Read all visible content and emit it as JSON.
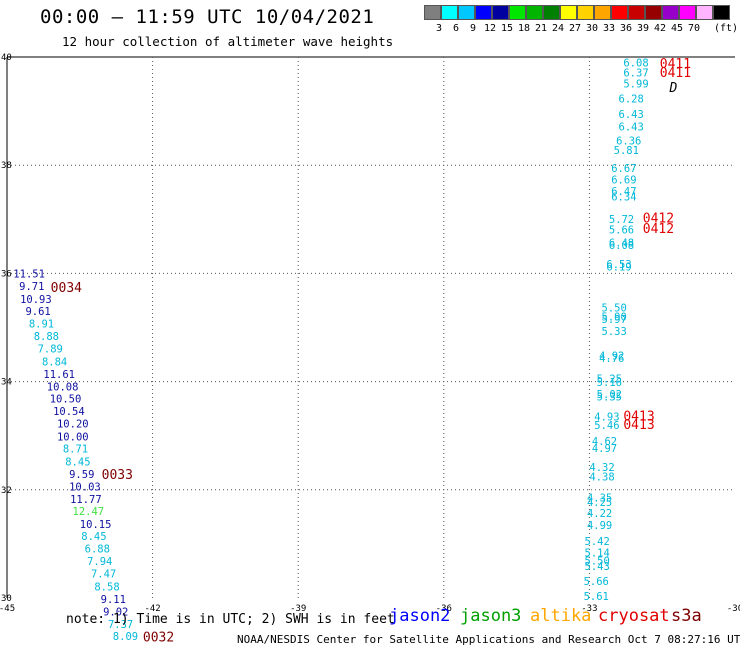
{
  "header": {
    "title": "00:00 — 11:59 UTC 10/04/2021",
    "subtitle": "12 hour collection of altimeter wave heights"
  },
  "legend": {
    "colors": [
      "#7f7f7f",
      "#00ffff",
      "#00c8ff",
      "#0000ff",
      "#0000a0",
      "#00e600",
      "#00b400",
      "#008000",
      "#ffff00",
      "#ffd200",
      "#ffa500",
      "#ff0000",
      "#c80000",
      "#960000",
      "#9600c8",
      "#ff00ff",
      "#ffb4ff",
      "#000000"
    ],
    "labels": [
      "3",
      "6",
      "9",
      "12",
      "15",
      "18",
      "21",
      "24",
      "27",
      "30",
      "33",
      "36",
      "39",
      "42",
      "45",
      "70"
    ],
    "unit": "(ft)"
  },
  "map": {
    "x_ticks": [
      "-45",
      "-42",
      "-39",
      "-36",
      "-33",
      "-30"
    ],
    "y_ticks": [
      "40",
      "38",
      "36",
      "34",
      "32",
      "30"
    ],
    "lon_range": [
      -45,
      -30
    ],
    "lat_range": [
      30,
      40
    ]
  },
  "points": [
    {
      "lon": -44.87,
      "lat": 35.92,
      "text": "11.51",
      "c": "#1010a0"
    },
    {
      "lon": -44.75,
      "lat": 35.69,
      "text": "9.71",
      "c": "#1010a0"
    },
    {
      "lon": -44.73,
      "lat": 35.45,
      "text": "10.93",
      "c": "#1010a0"
    },
    {
      "lon": -44.62,
      "lat": 35.23,
      "text": "9.61",
      "c": "#1010a0"
    },
    {
      "lon": -44.55,
      "lat": 35.0,
      "text": "8.91",
      "c": "#00b8d8"
    },
    {
      "lon": -44.45,
      "lat": 34.77,
      "text": "8.88",
      "c": "#00b8d8"
    },
    {
      "lon": -44.37,
      "lat": 34.54,
      "text": "7.89",
      "c": "#00b8d8"
    },
    {
      "lon": -44.28,
      "lat": 34.3,
      "text": "8.84",
      "c": "#00b8d8"
    },
    {
      "lon": -44.25,
      "lat": 34.07,
      "text": "11.61",
      "c": "#1010a0"
    },
    {
      "lon": -44.18,
      "lat": 33.84,
      "text": "10.08",
      "c": "#1010a0"
    },
    {
      "lon": -44.12,
      "lat": 33.61,
      "text": "10.50",
      "c": "#1010a0"
    },
    {
      "lon": -44.05,
      "lat": 33.38,
      "text": "10.54",
      "c": "#1010a0"
    },
    {
      "lon": -43.97,
      "lat": 33.15,
      "text": "10.20",
      "c": "#1010a0"
    },
    {
      "lon": -43.97,
      "lat": 32.91,
      "text": "10.00",
      "c": "#1010a0"
    },
    {
      "lon": -43.85,
      "lat": 32.69,
      "text": "8.71",
      "c": "#00b8d8"
    },
    {
      "lon": -43.8,
      "lat": 32.45,
      "text": "8.45",
      "c": "#00b8d8"
    },
    {
      "lon": -43.72,
      "lat": 32.22,
      "text": "9.59",
      "c": "#1010a0"
    },
    {
      "lon": -43.72,
      "lat": 31.99,
      "text": "10.03",
      "c": "#1010a0"
    },
    {
      "lon": -43.7,
      "lat": 31.76,
      "text": "11.77",
      "c": "#1010a0"
    },
    {
      "lon": -43.65,
      "lat": 31.53,
      "text": "12.47",
      "c": "#40e040"
    },
    {
      "lon": -43.5,
      "lat": 31.29,
      "text": "10.15",
      "c": "#1010a0"
    },
    {
      "lon": -43.47,
      "lat": 31.07,
      "text": "8.45",
      "c": "#00b8d8"
    },
    {
      "lon": -43.4,
      "lat": 30.84,
      "text": "6.88",
      "c": "#00b8d8"
    },
    {
      "lon": -43.35,
      "lat": 30.61,
      "text": "7.94",
      "c": "#00b8d8"
    },
    {
      "lon": -43.27,
      "lat": 30.38,
      "text": "7.47",
      "c": "#00b8d8"
    },
    {
      "lon": -43.2,
      "lat": 30.14,
      "text": "8.58",
      "c": "#00b8d8"
    },
    {
      "lon": -43.07,
      "lat": 29.91,
      "text": "9.11",
      "c": "#1010a0"
    },
    {
      "lon": -43.02,
      "lat": 29.68,
      "text": "9.02",
      "c": "#1010a0"
    },
    {
      "lon": -42.92,
      "lat": 29.45,
      "text": "7.37",
      "c": "#00b8d8"
    },
    {
      "lon": -42.82,
      "lat": 29.22,
      "text": "8.09",
      "c": "#00b8d8"
    },
    {
      "lon": -32.3,
      "lat": 39.82,
      "text": "6.08",
      "c": "#00b8d8"
    },
    {
      "lon": -32.3,
      "lat": 39.64,
      "text": "6.37",
      "c": "#00b8d8"
    },
    {
      "lon": -32.3,
      "lat": 39.44,
      "text": "5.99",
      "c": "#00b8d8"
    },
    {
      "lon": -32.4,
      "lat": 39.16,
      "text": "6.28",
      "c": "#00b8d8"
    },
    {
      "lon": -32.4,
      "lat": 38.87,
      "text": "6.43",
      "c": "#00b8d8"
    },
    {
      "lon": -32.4,
      "lat": 38.64,
      "text": "6.43",
      "c": "#00b8d8"
    },
    {
      "lon": -32.45,
      "lat": 38.38,
      "text": "6.36",
      "c": "#00b8d8"
    },
    {
      "lon": -32.5,
      "lat": 38.21,
      "text": "5.81",
      "c": "#00b8d8"
    },
    {
      "lon": -32.55,
      "lat": 37.87,
      "text": "6.67",
      "c": "#00b8d8"
    },
    {
      "lon": -32.55,
      "lat": 37.66,
      "text": "6.69",
      "c": "#00b8d8"
    },
    {
      "lon": -32.55,
      "lat": 37.45,
      "text": "6.47",
      "c": "#00b8d8"
    },
    {
      "lon": -32.55,
      "lat": 37.35,
      "text": "6.34",
      "c": "#00b8d8"
    },
    {
      "lon": -32.6,
      "lat": 36.93,
      "text": "5.72",
      "c": "#00b8d8"
    },
    {
      "lon": -32.6,
      "lat": 36.74,
      "text": "5.66",
      "c": "#00b8d8"
    },
    {
      "lon": -32.6,
      "lat": 36.5,
      "text": "6.48",
      "c": "#00b8d8"
    },
    {
      "lon": -32.6,
      "lat": 36.45,
      "text": "6.08",
      "c": "#00b8d8"
    },
    {
      "lon": -32.65,
      "lat": 36.1,
      "text": "6.53",
      "c": "#00b8d8"
    },
    {
      "lon": -32.65,
      "lat": 36.05,
      "text": "6.19",
      "c": "#00b8d8"
    },
    {
      "lon": -32.75,
      "lat": 35.3,
      "text": "5.50",
      "c": "#00b8d8"
    },
    {
      "lon": -32.75,
      "lat": 35.13,
      "text": "5.90",
      "c": "#00b8d8"
    },
    {
      "lon": -32.75,
      "lat": 35.08,
      "text": "5.97",
      "c": "#00b8d8"
    },
    {
      "lon": -32.75,
      "lat": 34.86,
      "text": "5.33",
      "c": "#00b8d8"
    },
    {
      "lon": -32.8,
      "lat": 34.41,
      "text": "4.92",
      "c": "#00b8d8"
    },
    {
      "lon": -32.8,
      "lat": 34.36,
      "text": "4.76",
      "c": "#00b8d8"
    },
    {
      "lon": -32.85,
      "lat": 33.98,
      "text": "5.25",
      "c": "#00b8d8"
    },
    {
      "lon": -32.85,
      "lat": 33.92,
      "text": "5.16",
      "c": "#00b8d8"
    },
    {
      "lon": -32.85,
      "lat": 33.7,
      "text": "5.02",
      "c": "#00b8d8"
    },
    {
      "lon": -32.85,
      "lat": 33.65,
      "text": "5.35",
      "c": "#00b8d8"
    },
    {
      "lon": -32.9,
      "lat": 33.28,
      "text": "4.93",
      "c": "#00b8d8"
    },
    {
      "lon": -32.9,
      "lat": 33.12,
      "text": "5.46",
      "c": "#00b8d8"
    },
    {
      "lon": -32.95,
      "lat": 32.83,
      "text": "4.62",
      "c": "#00b8d8"
    },
    {
      "lon": -32.95,
      "lat": 32.7,
      "text": "4.97",
      "c": "#00b8d8"
    },
    {
      "lon": -33.0,
      "lat": 32.35,
      "text": "4.32",
      "c": "#00b8d8"
    },
    {
      "lon": -33.0,
      "lat": 32.17,
      "text": "4.38",
      "c": "#00b8d8"
    },
    {
      "lon": -33.05,
      "lat": 31.78,
      "text": "4.35",
      "c": "#00b8d8"
    },
    {
      "lon": -33.05,
      "lat": 31.7,
      "text": "4.25",
      "c": "#00b8d8"
    },
    {
      "lon": -33.05,
      "lat": 31.5,
      "text": "4.22",
      "c": "#00b8d8"
    },
    {
      "lon": -33.05,
      "lat": 31.28,
      "text": "4.99",
      "c": "#00b8d8"
    },
    {
      "lon": -33.1,
      "lat": 30.98,
      "text": "5.42",
      "c": "#00b8d8"
    },
    {
      "lon": -33.1,
      "lat": 30.77,
      "text": "5.14",
      "c": "#00b8d8"
    },
    {
      "lon": -33.1,
      "lat": 30.62,
      "text": "5.50",
      "c": "#00b8d8"
    },
    {
      "lon": -33.1,
      "lat": 30.52,
      "text": "5.43",
      "c": "#00b8d8"
    },
    {
      "lon": -33.12,
      "lat": 30.24,
      "text": "5.66",
      "c": "#00b8d8"
    },
    {
      "lon": -33.12,
      "lat": 29.96,
      "text": "5.61",
      "c": "#00b8d8"
    }
  ],
  "time_labels": [
    {
      "lon": -44.1,
      "lat": 35.66,
      "text": "0034",
      "c": "#800000"
    },
    {
      "lon": -43.05,
      "lat": 32.2,
      "text": "0033",
      "c": "#800000"
    },
    {
      "lon": -42.2,
      "lat": 29.2,
      "text": "0032",
      "c": "#800000"
    },
    {
      "lon": -31.55,
      "lat": 39.8,
      "text": "0411",
      "c": "#e00000"
    },
    {
      "lon": -31.55,
      "lat": 39.63,
      "text": "0411",
      "c": "#e00000"
    },
    {
      "lon": -31.9,
      "lat": 36.94,
      "text": "0412",
      "c": "#e00000"
    },
    {
      "lon": -31.9,
      "lat": 36.75,
      "text": "0412",
      "c": "#e00000"
    },
    {
      "lon": -32.3,
      "lat": 33.28,
      "text": "0413",
      "c": "#e00000"
    },
    {
      "lon": -32.3,
      "lat": 33.12,
      "text": "0413",
      "c": "#e00000"
    }
  ],
  "marker": {
    "lon": -31.35,
    "lat": 39.35,
    "text": "D"
  },
  "footer": {
    "note": "note: 1) Time is in UTC; 2) SWH is in feet",
    "satellites": [
      {
        "name": "jason2",
        "color": "#0000ff"
      },
      {
        "name": "jason3",
        "color": "#00a000"
      },
      {
        "name": "altika",
        "color": "#ffa500"
      },
      {
        "name": "cryosat",
        "color": "#e00000"
      },
      {
        "name": "s3a",
        "color": "#800000"
      }
    ],
    "credit": "NOAA/NESDIS Center for Satellite Applications and Research   Oct  7 08:27:16 UTC 2021"
  }
}
